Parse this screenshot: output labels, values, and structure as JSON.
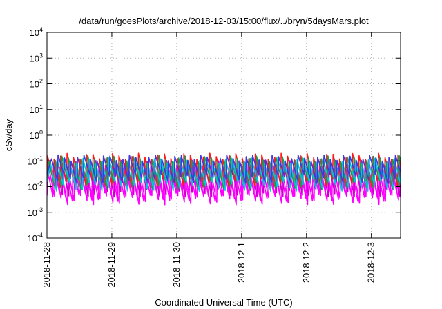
{
  "chart_data": {
    "type": "line",
    "title": "/data/run/goesPlots/archive/2018-12-03/15:00/flux/../bryn/5daysMars.plot",
    "xlabel": "Coordinated Universal Time (UTC)",
    "ylabel": "cSv/day",
    "y_scale": "log",
    "ylim": [
      0.0001,
      10000
    ],
    "y_ticks": [
      {
        "value": 0.0001,
        "base": "10",
        "exp": "-4"
      },
      {
        "value": 0.001,
        "base": "10",
        "exp": "-3"
      },
      {
        "value": 0.01,
        "base": "10",
        "exp": "-2"
      },
      {
        "value": 0.1,
        "base": "10",
        "exp": "-1"
      },
      {
        "value": 1,
        "base": "10",
        "exp": "0"
      },
      {
        "value": 10,
        "base": "10",
        "exp": "1"
      },
      {
        "value": 100,
        "base": "10",
        "exp": "2"
      },
      {
        "value": 1000,
        "base": "10",
        "exp": "3"
      },
      {
        "value": 10000,
        "base": "10",
        "exp": "4"
      }
    ],
    "x_ticks": [
      "2018-11-28",
      "2018-11-29",
      "2018-11-30",
      "2018-12-1",
      "2018-12-2",
      "2018-12-3"
    ],
    "x_range_days": [
      0,
      5.45
    ],
    "grid": true,
    "cycles_per_day": 10,
    "series": [
      {
        "color": "#ff00ff",
        "peak": 0.06,
        "trough": 0.004,
        "phase": 0.0
      },
      {
        "color": "#ff00ff",
        "peak": 0.05,
        "trough": 0.003,
        "phase": 0.25
      },
      {
        "color": "#cc00cc",
        "peak": 0.08,
        "trough": 0.006,
        "phase": 0.45
      },
      {
        "color": "#ff1a1a",
        "peak": 0.15,
        "trough": 0.015,
        "phase": 0.1
      },
      {
        "color": "#2b9348",
        "peak": 0.12,
        "trough": 0.012,
        "phase": 0.3
      },
      {
        "color": "#00c8d7",
        "peak": 0.1,
        "trough": 0.01,
        "phase": 0.55
      },
      {
        "color": "#3a3adf",
        "peak": 0.13,
        "trough": 0.02,
        "phase": 0.7
      }
    ]
  }
}
